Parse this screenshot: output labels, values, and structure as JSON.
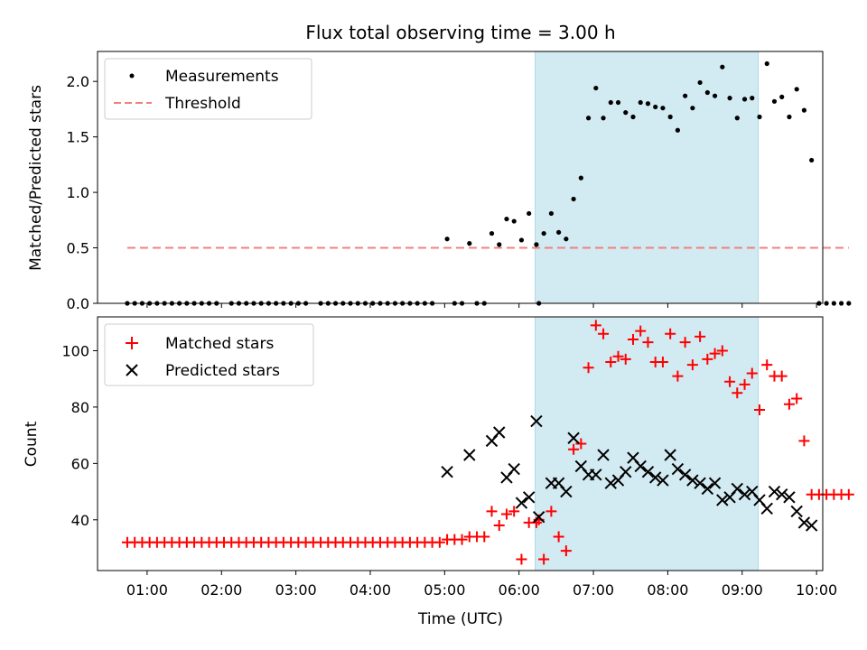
{
  "chart_data": [
    {
      "type": "scatter",
      "title": "Flux total observing time = 3.00 h",
      "xlabel": "",
      "ylabel": "Matched/Predicted stars",
      "xlim": [
        "00:20",
        "10:05"
      ],
      "ylim": [
        0,
        2.27
      ],
      "yticks": [
        "0.0",
        "0.5",
        "1.0",
        "1.5",
        "2.0"
      ],
      "legend_position": "top-left",
      "highlight_span": {
        "from": "06:13",
        "to": "09:13",
        "color": "#add8e6"
      },
      "series": [
        {
          "name": "Measurements",
          "marker": "dot",
          "color": "#000000",
          "points": [
            [
              "00:44",
              0
            ],
            [
              "00:50",
              0
            ],
            [
              "00:56",
              0
            ],
            [
              "01:02",
              0
            ],
            [
              "01:08",
              0
            ],
            [
              "01:14",
              0
            ],
            [
              "01:20",
              0
            ],
            [
              "01:26",
              0
            ],
            [
              "01:32",
              0
            ],
            [
              "01:38",
              0
            ],
            [
              "01:44",
              0
            ],
            [
              "01:50",
              0
            ],
            [
              "01:56",
              0
            ],
            [
              "02:08",
              0
            ],
            [
              "02:14",
              0
            ],
            [
              "02:20",
              0
            ],
            [
              "02:26",
              0
            ],
            [
              "02:32",
              0
            ],
            [
              "02:38",
              0
            ],
            [
              "02:44",
              0
            ],
            [
              "02:50",
              0
            ],
            [
              "02:56",
              0
            ],
            [
              "03:02",
              0
            ],
            [
              "03:08",
              0
            ],
            [
              "03:20",
              0
            ],
            [
              "03:26",
              0
            ],
            [
              "03:32",
              0
            ],
            [
              "03:38",
              0
            ],
            [
              "03:44",
              0
            ],
            [
              "03:50",
              0
            ],
            [
              "03:56",
              0
            ],
            [
              "04:02",
              0
            ],
            [
              "04:08",
              0
            ],
            [
              "04:14",
              0
            ],
            [
              "04:20",
              0
            ],
            [
              "04:26",
              0
            ],
            [
              "04:32",
              0
            ],
            [
              "04:38",
              0
            ],
            [
              "04:44",
              0
            ],
            [
              "04:50",
              0
            ],
            [
              "05:02",
              0.58
            ],
            [
              "05:08",
              0
            ],
            [
              "05:14",
              0
            ],
            [
              "05:20",
              0.54
            ],
            [
              "05:26",
              0
            ],
            [
              "05:32",
              0
            ],
            [
              "05:38",
              0.63
            ],
            [
              "05:44",
              0.53
            ],
            [
              "05:50",
              0.76
            ],
            [
              "05:56",
              0.74
            ],
            [
              "06:02",
              0.57
            ],
            [
              "06:08",
              0.81
            ],
            [
              "06:14",
              0.53
            ],
            [
              "06:16",
              0
            ],
            [
              "06:20",
              0.63
            ],
            [
              "06:26",
              0.81
            ],
            [
              "06:32",
              0.64
            ],
            [
              "06:38",
              0.58
            ],
            [
              "06:44",
              0.94
            ],
            [
              "06:50",
              1.13
            ],
            [
              "06:56",
              1.67
            ],
            [
              "07:02",
              1.94
            ],
            [
              "07:08",
              1.67
            ],
            [
              "07:14",
              1.81
            ],
            [
              "07:20",
              1.81
            ],
            [
              "07:26",
              1.72
            ],
            [
              "07:32",
              1.68
            ],
            [
              "07:38",
              1.81
            ],
            [
              "07:44",
              1.8
            ],
            [
              "07:50",
              1.77
            ],
            [
              "07:56",
              1.76
            ],
            [
              "08:02",
              1.68
            ],
            [
              "08:08",
              1.56
            ],
            [
              "08:14",
              1.87
            ],
            [
              "08:20",
              1.76
            ],
            [
              "08:26",
              1.99
            ],
            [
              "08:32",
              1.9
            ],
            [
              "08:38",
              1.87
            ],
            [
              "08:44",
              2.13
            ],
            [
              "08:50",
              1.85
            ],
            [
              "08:56",
              1.67
            ],
            [
              "09:02",
              1.84
            ],
            [
              "09:08",
              1.85
            ],
            [
              "09:14",
              1.68
            ],
            [
              "09:20",
              2.16
            ],
            [
              "09:26",
              1.82
            ],
            [
              "09:32",
              1.86
            ],
            [
              "09:38",
              1.68
            ],
            [
              "09:44",
              1.93
            ],
            [
              "09:50",
              1.74
            ],
            [
              "09:56",
              1.29
            ],
            [
              "10:02",
              0
            ],
            [
              "10:08",
              0
            ],
            [
              "10:14",
              0
            ],
            [
              "10:20",
              0
            ],
            [
              "10:26",
              0
            ]
          ]
        },
        {
          "name": "Threshold",
          "marker": "dashed-line",
          "color": "#f08080",
          "points": [
            [
              "00:44",
              0.5
            ],
            [
              "10:26",
              0.5
            ]
          ]
        }
      ]
    },
    {
      "type": "scatter",
      "title": "",
      "xlabel": "Time (UTC)",
      "ylabel": "Count",
      "xlim": [
        "00:20",
        "10:05"
      ],
      "ylim": [
        22,
        112
      ],
      "yticks": [
        "40",
        "60",
        "80",
        "100"
      ],
      "xticks": [
        "01:00",
        "02:00",
        "03:00",
        "04:00",
        "05:00",
        "06:00",
        "07:00",
        "08:00",
        "09:00",
        "10:00"
      ],
      "legend_position": "top-left",
      "highlight_span": {
        "from": "06:13",
        "to": "09:13",
        "color": "#add8e6"
      },
      "series": [
        {
          "name": "Matched stars",
          "marker": "plus",
          "color": "#ff0000",
          "points": [
            [
              "00:44",
              32
            ],
            [
              "00:50",
              32
            ],
            [
              "00:56",
              32
            ],
            [
              "01:02",
              32
            ],
            [
              "01:08",
              32
            ],
            [
              "01:14",
              32
            ],
            [
              "01:20",
              32
            ],
            [
              "01:26",
              32
            ],
            [
              "01:32",
              32
            ],
            [
              "01:38",
              32
            ],
            [
              "01:44",
              32
            ],
            [
              "01:50",
              32
            ],
            [
              "01:56",
              32
            ],
            [
              "02:02",
              32
            ],
            [
              "02:08",
              32
            ],
            [
              "02:14",
              32
            ],
            [
              "02:20",
              32
            ],
            [
              "02:26",
              32
            ],
            [
              "02:32",
              32
            ],
            [
              "02:38",
              32
            ],
            [
              "02:44",
              32
            ],
            [
              "02:50",
              32
            ],
            [
              "02:56",
              32
            ],
            [
              "03:02",
              32
            ],
            [
              "03:08",
              32
            ],
            [
              "03:14",
              32
            ],
            [
              "03:20",
              32
            ],
            [
              "03:26",
              32
            ],
            [
              "03:32",
              32
            ],
            [
              "03:38",
              32
            ],
            [
              "03:44",
              32
            ],
            [
              "03:50",
              32
            ],
            [
              "03:56",
              32
            ],
            [
              "04:02",
              32
            ],
            [
              "04:08",
              32
            ],
            [
              "04:14",
              32
            ],
            [
              "04:20",
              32
            ],
            [
              "04:26",
              32
            ],
            [
              "04:32",
              32
            ],
            [
              "04:38",
              32
            ],
            [
              "04:44",
              32
            ],
            [
              "04:50",
              32
            ],
            [
              "04:56",
              32
            ],
            [
              "05:02",
              33
            ],
            [
              "05:08",
              33
            ],
            [
              "05:14",
              33
            ],
            [
              "05:20",
              34
            ],
            [
              "05:26",
              34
            ],
            [
              "05:32",
              34
            ],
            [
              "05:38",
              43
            ],
            [
              "05:44",
              38
            ],
            [
              "05:50",
              42
            ],
            [
              "05:56",
              43
            ],
            [
              "06:02",
              26
            ],
            [
              "06:08",
              39
            ],
            [
              "06:14",
              39
            ],
            [
              "06:16",
              40
            ],
            [
              "06:20",
              26
            ],
            [
              "06:26",
              43
            ],
            [
              "06:32",
              34
            ],
            [
              "06:38",
              29
            ],
            [
              "06:44",
              65
            ],
            [
              "06:50",
              67
            ],
            [
              "06:56",
              94
            ],
            [
              "07:02",
              109
            ],
            [
              "07:08",
              106
            ],
            [
              "07:14",
              96
            ],
            [
              "07:20",
              98
            ],
            [
              "07:26",
              97
            ],
            [
              "07:32",
              104
            ],
            [
              "07:38",
              107
            ],
            [
              "07:44",
              103
            ],
            [
              "07:50",
              96
            ],
            [
              "07:56",
              96
            ],
            [
              "08:02",
              106
            ],
            [
              "08:08",
              91
            ],
            [
              "08:14",
              103
            ],
            [
              "08:20",
              95
            ],
            [
              "08:26",
              105
            ],
            [
              "08:32",
              97
            ],
            [
              "08:38",
              99
            ],
            [
              "08:44",
              100
            ],
            [
              "08:50",
              89
            ],
            [
              "08:56",
              85
            ],
            [
              "09:02",
              88
            ],
            [
              "09:08",
              92
            ],
            [
              "09:14",
              79
            ],
            [
              "09:20",
              95
            ],
            [
              "09:26",
              91
            ],
            [
              "09:32",
              91
            ],
            [
              "09:38",
              81
            ],
            [
              "09:44",
              83
            ],
            [
              "09:50",
              68
            ],
            [
              "09:56",
              49
            ],
            [
              "10:02",
              49
            ],
            [
              "10:08",
              49
            ],
            [
              "10:14",
              49
            ],
            [
              "10:20",
              49
            ],
            [
              "10:26",
              49
            ]
          ]
        },
        {
          "name": "Predicted stars",
          "marker": "x",
          "color": "#000000",
          "points": [
            [
              "05:02",
              57
            ],
            [
              "05:20",
              63
            ],
            [
              "05:38",
              68
            ],
            [
              "05:44",
              71
            ],
            [
              "05:50",
              55
            ],
            [
              "05:56",
              58
            ],
            [
              "06:02",
              46
            ],
            [
              "06:08",
              48
            ],
            [
              "06:14",
              75
            ],
            [
              "06:16",
              41
            ],
            [
              "06:26",
              53
            ],
            [
              "06:32",
              53
            ],
            [
              "06:38",
              50
            ],
            [
              "06:44",
              69
            ],
            [
              "06:50",
              59
            ],
            [
              "06:56",
              56
            ],
            [
              "07:02",
              56
            ],
            [
              "07:08",
              63
            ],
            [
              "07:14",
              53
            ],
            [
              "07:20",
              54
            ],
            [
              "07:26",
              57
            ],
            [
              "07:32",
              62
            ],
            [
              "07:38",
              59
            ],
            [
              "07:44",
              57
            ],
            [
              "07:50",
              55
            ],
            [
              "07:56",
              54
            ],
            [
              "08:02",
              63
            ],
            [
              "08:08",
              58
            ],
            [
              "08:14",
              56
            ],
            [
              "08:20",
              54
            ],
            [
              "08:26",
              53
            ],
            [
              "08:32",
              51
            ],
            [
              "08:38",
              53
            ],
            [
              "08:44",
              47
            ],
            [
              "08:50",
              48
            ],
            [
              "08:56",
              51
            ],
            [
              "09:02",
              49
            ],
            [
              "09:08",
              50
            ],
            [
              "09:14",
              47
            ],
            [
              "09:20",
              44
            ],
            [
              "09:26",
              50
            ],
            [
              "09:32",
              49
            ],
            [
              "09:38",
              48
            ],
            [
              "09:44",
              43
            ],
            [
              "09:50",
              39
            ],
            [
              "09:56",
              38
            ]
          ]
        }
      ]
    }
  ]
}
